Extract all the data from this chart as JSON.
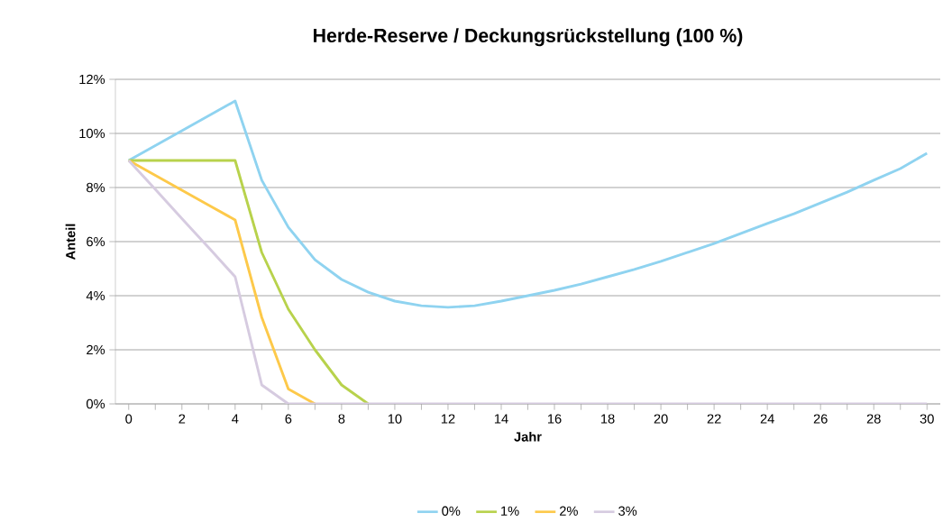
{
  "chart_data": {
    "type": "line",
    "title": "Herde-Reserve / Deckungsrückstellung (100 %)",
    "xlabel": "Jahr",
    "ylabel": "Anteil",
    "x": [
      0,
      1,
      2,
      3,
      4,
      5,
      6,
      7,
      8,
      9,
      10,
      11,
      12,
      13,
      14,
      15,
      16,
      17,
      18,
      19,
      20,
      21,
      22,
      23,
      24,
      25,
      26,
      27,
      28,
      29,
      30
    ],
    "series": [
      {
        "name": "0%",
        "color": "#8fd3f0",
        "values": [
          9,
          9.55,
          10.1,
          10.65,
          11.2,
          8.27,
          6.53,
          5.33,
          4.6,
          4.13,
          3.8,
          3.63,
          3.57,
          3.63,
          3.8,
          4.0,
          4.2,
          4.43,
          4.7,
          4.97,
          5.27,
          5.6,
          5.93,
          6.3,
          6.67,
          7.03,
          7.43,
          7.83,
          8.27,
          8.7,
          9.27
        ]
      },
      {
        "name": "1%",
        "color": "#b8d24c",
        "values": [
          9,
          9,
          9,
          9,
          9,
          5.6,
          3.5,
          2.0,
          0.7,
          0,
          null,
          null,
          null,
          null,
          null,
          null,
          null,
          null,
          null,
          null,
          null,
          null,
          null,
          null,
          null,
          null,
          null,
          null,
          null,
          null,
          null
        ]
      },
      {
        "name": "2%",
        "color": "#fdc94a",
        "values": [
          9,
          8.45,
          7.9,
          7.35,
          6.8,
          3.2,
          0.55,
          0,
          null,
          null,
          null,
          null,
          null,
          null,
          null,
          null,
          null,
          null,
          null,
          null,
          null,
          null,
          null,
          null,
          null,
          null,
          null,
          null,
          null,
          null,
          null
        ]
      },
      {
        "name": "3%",
        "color": "#d6cbe0",
        "values": [
          9,
          7.93,
          6.85,
          5.78,
          4.7,
          0.7,
          0,
          0,
          0,
          0,
          0,
          0,
          0,
          0,
          0,
          0,
          0,
          0,
          0,
          0,
          0,
          0,
          0,
          0,
          0,
          0,
          0,
          0,
          0,
          0,
          0
        ]
      }
    ],
    "xlim": [
      -0.5,
      30.5
    ],
    "xticks": [
      0,
      {
        "value": 1,
        "label": null
      },
      2,
      {
        "value": 3,
        "label": null
      },
      4,
      {
        "value": 5,
        "label": null
      },
      6,
      {
        "value": 7,
        "label": null
      },
      8,
      {
        "value": 9,
        "label": null
      },
      10,
      {
        "value": 11,
        "label": null
      },
      12,
      {
        "value": 13,
        "label": null
      },
      14,
      {
        "value": 15,
        "label": null
      },
      16,
      {
        "value": 17,
        "label": null
      },
      18,
      {
        "value": 19,
        "label": null
      },
      20,
      {
        "value": 21,
        "label": null
      },
      22,
      {
        "value": 23,
        "label": null
      },
      24,
      {
        "value": 25,
        "label": null
      },
      26,
      {
        "value": 27,
        "label": null
      },
      28,
      {
        "value": 29,
        "label": null
      },
      30
    ],
    "ylim": [
      0,
      12
    ],
    "yticks": [
      {
        "value": 0,
        "label": "0%"
      },
      {
        "value": 2,
        "label": "2%"
      },
      {
        "value": 4,
        "label": "4%"
      },
      {
        "value": 6,
        "label": "6%"
      },
      {
        "value": 8,
        "label": "8%"
      },
      {
        "value": 10,
        "label": "10%"
      },
      {
        "value": 12,
        "label": "12%"
      }
    ],
    "grid": "y",
    "legend": "bottom",
    "marker": "none",
    "line_style": "solid"
  }
}
